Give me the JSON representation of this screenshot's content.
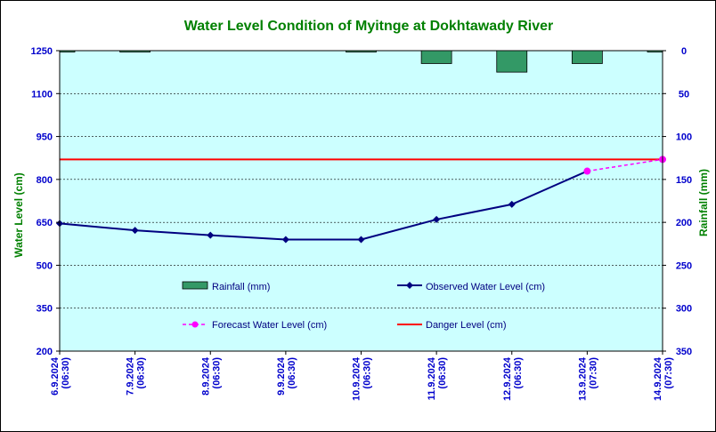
{
  "chart_data": {
    "type": "line",
    "title": "Water Level Condition of Myitnge at Dokhtawady River",
    "ylabel": "Water Level (cm)",
    "y2label": "Rainfall (mm)",
    "categories": [
      [
        "6.9.2024",
        "(06:30)"
      ],
      [
        "7.9.2024",
        "(06:30)"
      ],
      [
        "8.9.2024",
        "(06:30)"
      ],
      [
        "9.9.2024",
        "(06:30)"
      ],
      [
        "10.9.2024",
        "(06:30)"
      ],
      [
        "11.9.2024",
        "(06:30)"
      ],
      [
        "12.9.2024",
        "(06:30)"
      ],
      [
        "13.9.2024",
        "(07:30)"
      ],
      [
        "14.9.2024",
        "(07:30)"
      ]
    ],
    "ylim": [
      200,
      1250
    ],
    "yticks": [
      200,
      350,
      500,
      650,
      800,
      950,
      1100,
      1250
    ],
    "y2lim": [
      0,
      350
    ],
    "y2ticks": [
      0,
      50,
      100,
      150,
      200,
      250,
      300,
      350
    ],
    "y2_reversed": true,
    "grid": "horizontal dashed",
    "series": [
      {
        "name": "Rainfall (mm)",
        "kind": "bar",
        "axis": "right",
        "color": "#339966",
        "values": [
          1,
          1,
          null,
          null,
          0.5,
          15,
          25,
          15,
          1
        ]
      },
      {
        "name": "Observed Water Level (cm)",
        "kind": "line",
        "axis": "left",
        "color": "#000080",
        "values": [
          646,
          622,
          605,
          590,
          590,
          660,
          713,
          829,
          null
        ]
      },
      {
        "name": "Forecast Water Level (cm)",
        "kind": "dashed-line",
        "axis": "left",
        "color": "#ff00ff",
        "values": [
          null,
          null,
          null,
          null,
          null,
          null,
          null,
          829,
          870
        ]
      },
      {
        "name": "Danger Level (cm)",
        "kind": "hline",
        "axis": "left",
        "color": "#ff0000",
        "value": 870
      }
    ],
    "legend": {
      "placement": "inside-lower"
    }
  },
  "colors": {
    "plot_bg": "#ccffff",
    "title": "#008000",
    "left_axis_label": "#008000",
    "right_axis_label": "#008000",
    "ticks": "#0000cc"
  }
}
